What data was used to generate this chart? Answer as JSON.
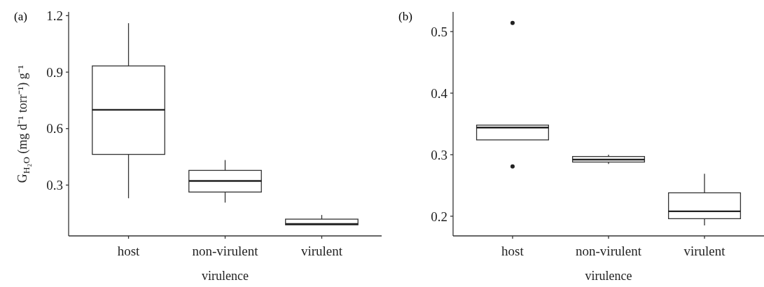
{
  "chart_data": [
    {
      "type": "box",
      "title": "(a)",
      "xlabel": "virulence",
      "ylabel": "G$_{H₂O}$ (mg d⁻¹ torr⁻¹) g⁻¹",
      "categories": [
        "host",
        "non-virulent",
        "virulent"
      ],
      "ylim": [
        0.03,
        1.22
      ],
      "yticks": [
        0.3,
        0.6,
        0.9,
        1.2
      ],
      "grid": false,
      "boxes": [
        {
          "low": 0.23,
          "q1": 0.463,
          "median": 0.7,
          "q3": 0.933,
          "high": 1.16
        },
        {
          "low": 0.207,
          "q1": 0.263,
          "median": 0.322,
          "q3": 0.378,
          "high": 0.433
        },
        {
          "low": 0.089,
          "q1": 0.089,
          "median": 0.093,
          "q3": 0.119,
          "high": 0.141
        }
      ]
    },
    {
      "type": "box",
      "title": "(b)",
      "xlabel": "virulence",
      "categories": [
        "host",
        "non-virulent",
        "virulent"
      ],
      "ylim": [
        0.168,
        0.532
      ],
      "yticks": [
        0.2,
        0.3,
        0.4,
        0.5
      ],
      "grid": false,
      "boxes": [
        {
          "low": 0.324,
          "q1": 0.324,
          "median": 0.344,
          "q3": 0.348,
          "high": 0.348,
          "outliers": [
            0.514,
            0.281
          ]
        },
        {
          "low": 0.285,
          "q1": 0.288,
          "median": 0.292,
          "q3": 0.297,
          "high": 0.3
        },
        {
          "low": 0.185,
          "q1": 0.196,
          "median": 0.208,
          "q3": 0.238,
          "high": 0.269
        }
      ]
    }
  ]
}
